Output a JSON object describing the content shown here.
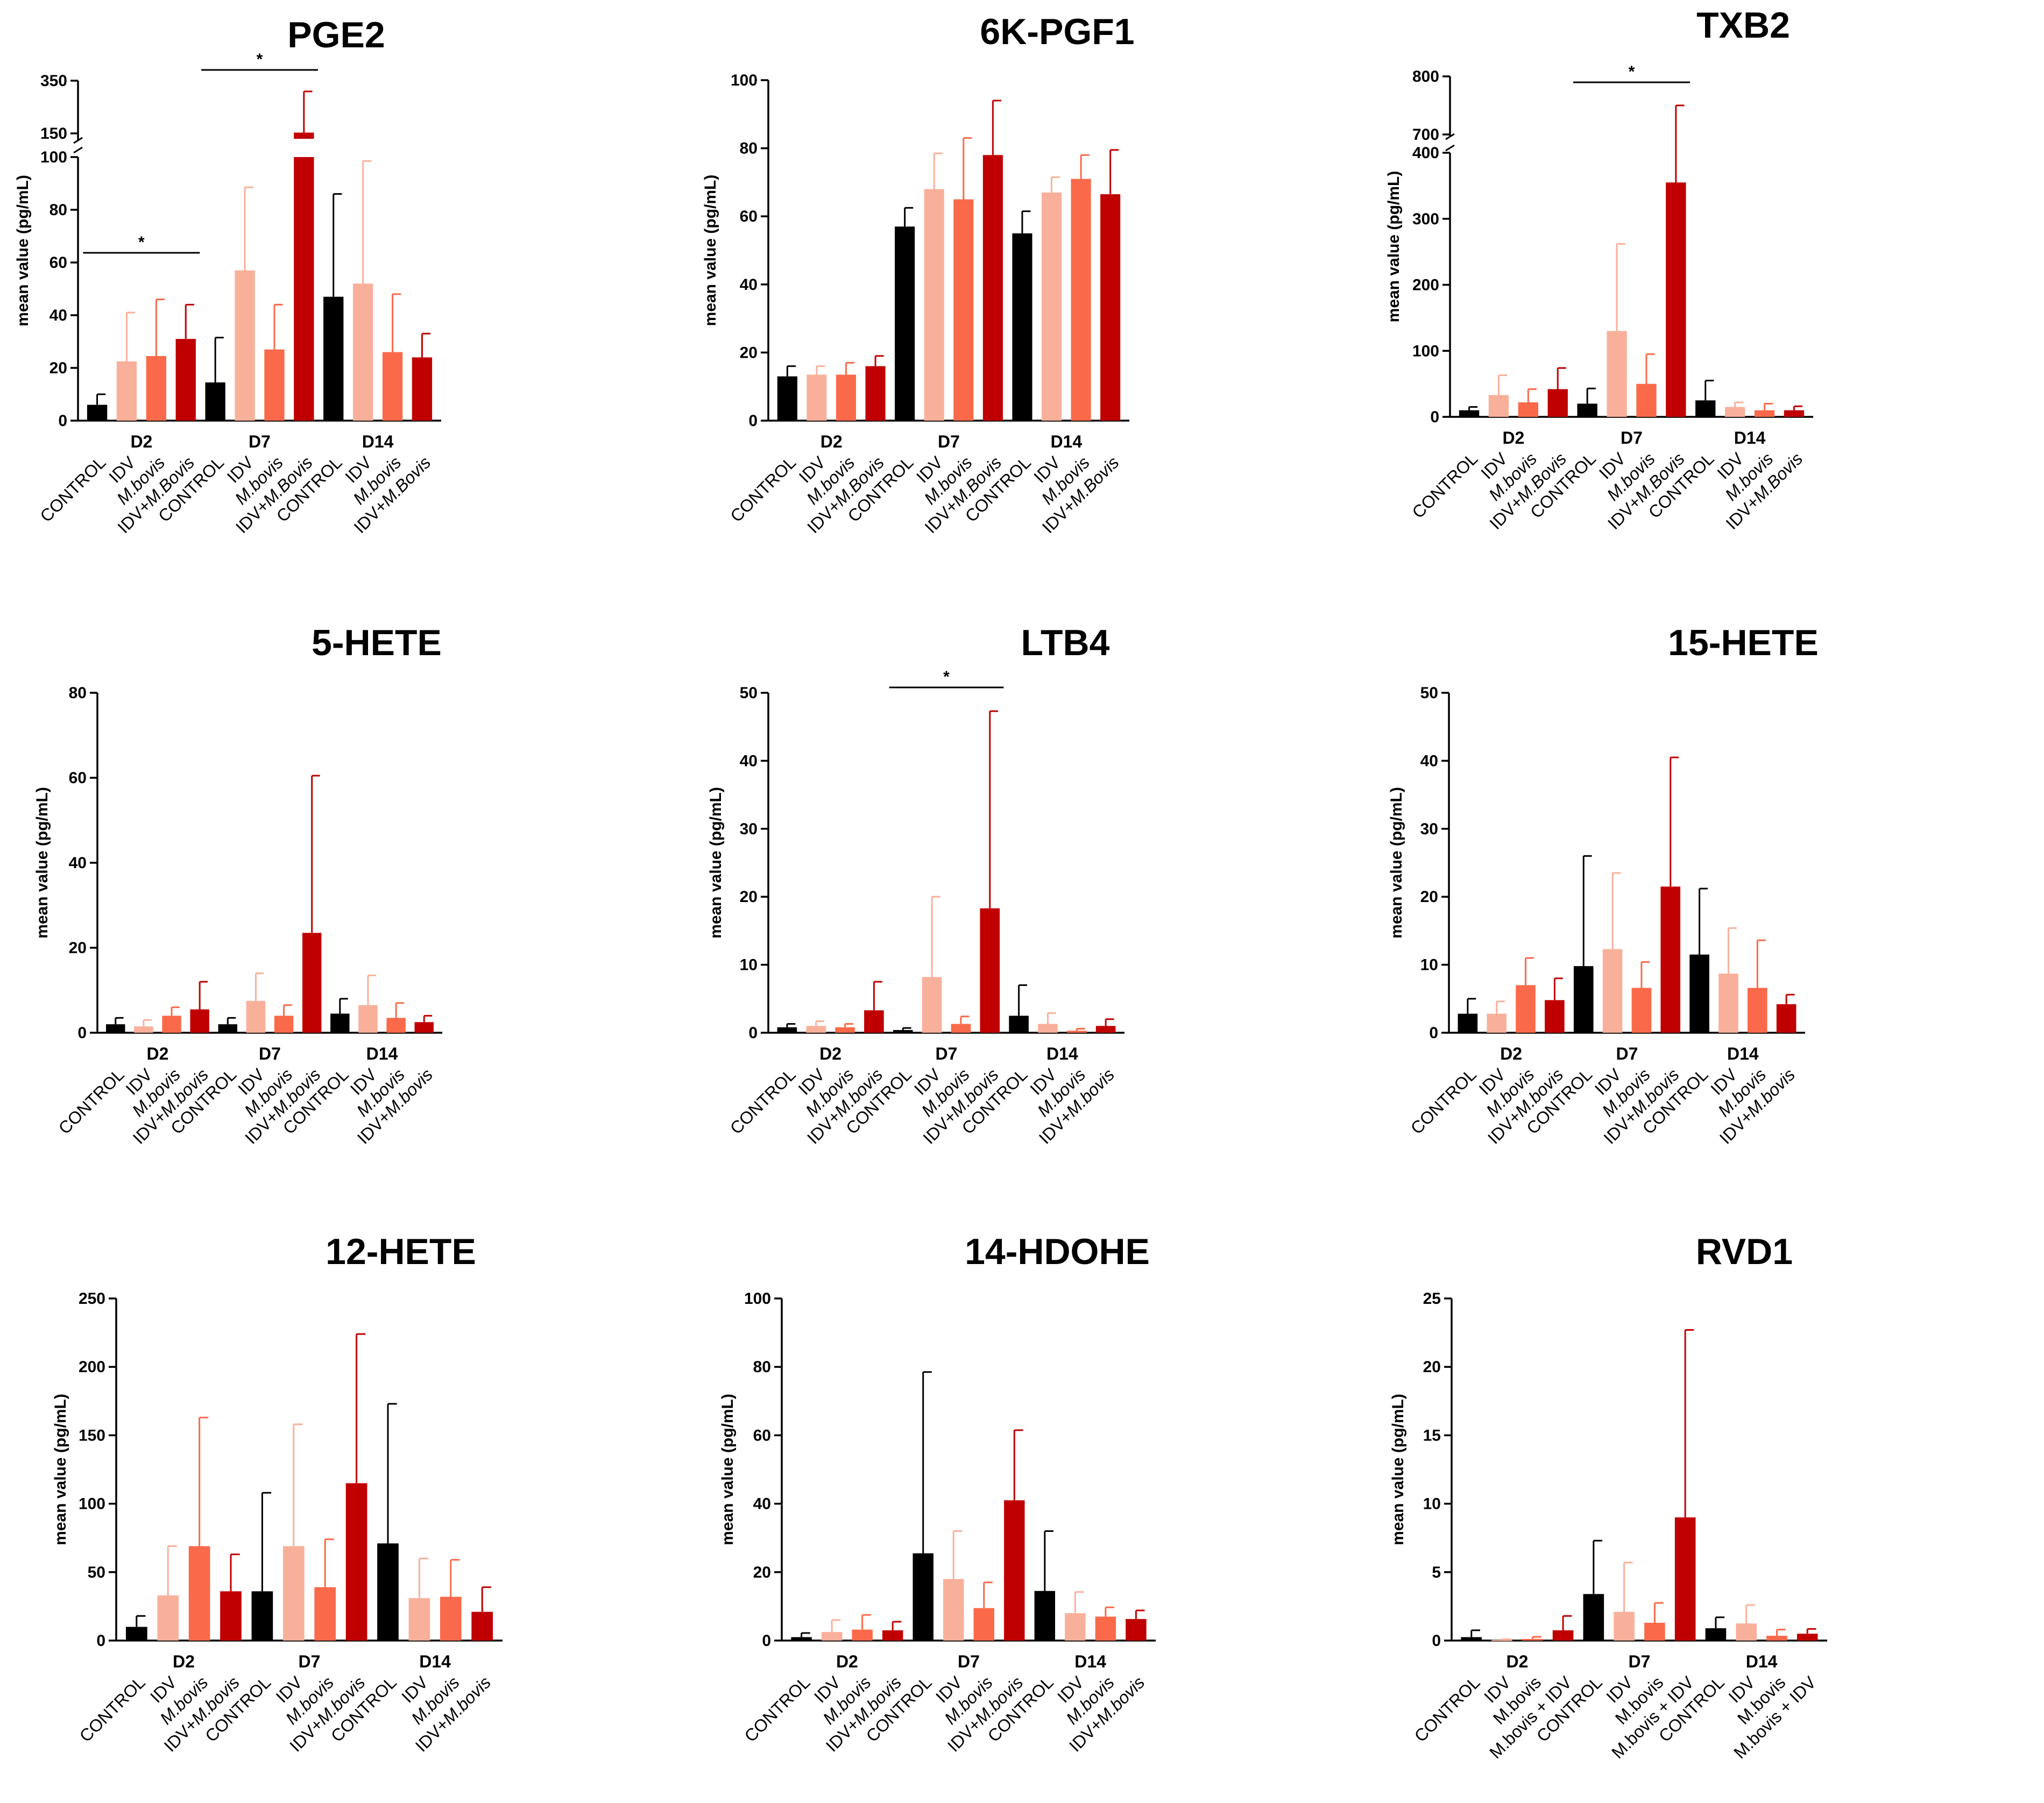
{
  "figure": {
    "ylabel": "mean value (pg/mL)",
    "colors": {
      "CONTROL": "#000000",
      "IDV": "#f9b09a",
      "M.bovis": "#fa6a4a",
      "IDV+M.bovis": "#c00000"
    }
  },
  "chart_data": [
    {
      "type": "bar",
      "title": "PGE2",
      "groups": [
        "D2",
        "D7",
        "D14"
      ],
      "categories": [
        "CONTROL",
        "IDV",
        "M.bovis",
        "IDV+M.Bovis"
      ],
      "cat_italic": [
        false,
        false,
        true,
        "partial"
      ],
      "ylim": [
        0,
        100
      ],
      "yticks": [
        0,
        20,
        40,
        60,
        80,
        100
      ],
      "break": {
        "lower_max": 100,
        "upper_range": [
          150,
          350
        ],
        "upper_ticks": [
          150,
          350
        ]
      },
      "values": [
        [
          6,
          22.5,
          24.5,
          31
        ],
        [
          14.5,
          57,
          27,
          153
        ],
        [
          47,
          52,
          26,
          24
        ]
      ],
      "errors": [
        [
          4,
          18.5,
          21.5,
          13
        ],
        [
          17,
          31.5,
          17,
          177
        ],
        [
          39,
          46.5,
          22,
          9
        ]
      ],
      "significance": [
        {
          "from": [
            0,
            0
          ],
          "to": [
            0,
            3
          ],
          "label": "*"
        },
        {
          "from": [
            1,
            0
          ],
          "to": [
            1,
            3
          ],
          "label": "*"
        }
      ]
    },
    {
      "type": "bar",
      "title": "6K-PGF1",
      "groups": [
        "D2",
        "D7",
        "D14"
      ],
      "categories": [
        "CONTROL",
        "IDV",
        "M.bovis",
        "IDV+M.Bovis"
      ],
      "cat_italic": [
        false,
        false,
        true,
        "partial"
      ],
      "ylim": [
        0,
        100
      ],
      "yticks": [
        0,
        20,
        40,
        60,
        80,
        100
      ],
      "values": [
        [
          13,
          13.5,
          13.5,
          16
        ],
        [
          57,
          68,
          65,
          78
        ],
        [
          55,
          67,
          71,
          66.5
        ]
      ],
      "errors": [
        [
          3,
          2.5,
          3.5,
          3
        ],
        [
          5.5,
          10.5,
          18,
          16
        ],
        [
          6.5,
          4.5,
          7,
          13
        ]
      ],
      "significance": []
    },
    {
      "type": "bar",
      "title": "TXB2",
      "groups": [
        "D2",
        "D7",
        "D14"
      ],
      "categories": [
        "CONTROL",
        "IDV",
        "M.bovis",
        "IDV+M.Bovis"
      ],
      "cat_italic": [
        false,
        false,
        true,
        "partial"
      ],
      "ylim": [
        0,
        400
      ],
      "yticks": [
        0,
        100,
        200,
        300,
        400
      ],
      "break": {
        "lower_max": 400,
        "upper_range": [
          700,
          800
        ],
        "upper_ticks": [
          700,
          800
        ]
      },
      "values": [
        [
          10,
          33,
          22,
          42
        ],
        [
          20,
          130,
          50,
          355
        ],
        [
          25,
          15,
          10,
          10
        ]
      ],
      "errors": [
        [
          5,
          30,
          20,
          32
        ],
        [
          23,
          132,
          45,
          400
        ],
        [
          30,
          7,
          10,
          6
        ]
      ],
      "significance": [
        {
          "from": [
            1,
            0
          ],
          "to": [
            1,
            3
          ],
          "label": "*"
        }
      ]
    },
    {
      "type": "bar",
      "title": "5-HETE",
      "groups": [
        "D2",
        "D7",
        "D14"
      ],
      "categories": [
        "CONTROL",
        "IDV",
        "M.bovis",
        "IDV+M.bovis"
      ],
      "cat_italic": [
        false,
        false,
        true,
        "partial"
      ],
      "ylim": [
        0,
        80
      ],
      "yticks": [
        0,
        20,
        40,
        60,
        80
      ],
      "values": [
        [
          2,
          1.5,
          4,
          5.5
        ],
        [
          2,
          7.5,
          4,
          23.5
        ],
        [
          4.5,
          6.5,
          3.5,
          2.5
        ]
      ],
      "errors": [
        [
          1.5,
          1.5,
          2,
          6.5
        ],
        [
          1.5,
          6.5,
          2.5,
          37
        ],
        [
          3.5,
          7,
          3.5,
          1.5
        ]
      ],
      "significance": []
    },
    {
      "type": "bar",
      "title": "LTB4",
      "groups": [
        "D2",
        "D7",
        "D14"
      ],
      "categories": [
        "CONTROL",
        "IDV",
        "M.bovis",
        "IDV+M.bovis"
      ],
      "cat_italic": [
        false,
        false,
        true,
        "partial"
      ],
      "ylim": [
        0,
        50
      ],
      "yticks": [
        0,
        10,
        20,
        30,
        40,
        50
      ],
      "values": [
        [
          0.8,
          1,
          0.8,
          3.3
        ],
        [
          0.4,
          8.2,
          1.3,
          18.3
        ],
        [
          2.5,
          1.3,
          0.3,
          1
        ]
      ],
      "errors": [
        [
          0.5,
          0.7,
          0.5,
          4.2
        ],
        [
          0.3,
          11.8,
          1.1,
          29
        ],
        [
          4.5,
          1.6,
          0.3,
          1
        ]
      ],
      "significance": [
        {
          "from": [
            1,
            0
          ],
          "to": [
            1,
            3
          ],
          "label": "*"
        }
      ]
    },
    {
      "type": "bar",
      "title": "15-HETE",
      "groups": [
        "D2",
        "D7",
        "D14"
      ],
      "categories": [
        "CONTROL",
        "IDV",
        "M.bovis",
        "IDV+M.bovis"
      ],
      "cat_italic": [
        false,
        false,
        true,
        "partial"
      ],
      "ylim": [
        0,
        50
      ],
      "yticks": [
        0,
        10,
        20,
        30,
        40,
        50
      ],
      "values": [
        [
          2.8,
          2.8,
          7,
          4.8
        ],
        [
          9.8,
          12.3,
          6.6,
          21.5
        ],
        [
          11.5,
          8.7,
          6.6,
          4.2
        ]
      ],
      "errors": [
        [
          2.2,
          1.8,
          4,
          3.2
        ],
        [
          16.2,
          11.2,
          3.8,
          19
        ],
        [
          9.7,
          6.7,
          7,
          1.4
        ]
      ],
      "significance": []
    },
    {
      "type": "bar",
      "title": "12-HETE",
      "groups": [
        "D2",
        "D7",
        "D14"
      ],
      "categories": [
        "CONTROL",
        "IDV",
        "M.bovis",
        "IDV+M.bovis"
      ],
      "cat_italic": [
        false,
        false,
        true,
        "partial"
      ],
      "ylim": [
        0,
        250
      ],
      "yticks": [
        0,
        50,
        100,
        150,
        200,
        250
      ],
      "values": [
        [
          10,
          33,
          69,
          36
        ],
        [
          36,
          69,
          39,
          115
        ],
        [
          71,
          31,
          32,
          21
        ]
      ],
      "errors": [
        [
          8,
          36,
          94,
          27
        ],
        [
          72,
          89,
          35,
          109
        ],
        [
          102,
          29,
          27,
          18
        ]
      ],
      "significance": []
    },
    {
      "type": "bar",
      "title": "14-HDOHE",
      "groups": [
        "D2",
        "D7",
        "D14"
      ],
      "categories": [
        "CONTROL",
        "IDV",
        "M.bovis",
        "IDV+M.bovis"
      ],
      "cat_italic": [
        false,
        false,
        true,
        "partial"
      ],
      "ylim": [
        0,
        100
      ],
      "yticks": [
        0,
        20,
        40,
        60,
        80,
        100
      ],
      "values": [
        [
          1,
          2.5,
          3.2,
          3
        ],
        [
          25.5,
          18,
          9.5,
          41
        ],
        [
          14.5,
          8,
          7,
          6.3
        ]
      ],
      "errors": [
        [
          1.2,
          3.5,
          4.3,
          2.5
        ],
        [
          53,
          14,
          7.5,
          20.5
        ],
        [
          17.5,
          6.2,
          2.7,
          2.5
        ]
      ],
      "significance": []
    },
    {
      "type": "bar",
      "title": "RVD1",
      "groups": [
        "D2",
        "D7",
        "D14"
      ],
      "categories": [
        "CONTROL",
        "IDV",
        "M.bovis",
        "M.bovis + IDV"
      ],
      "cat_italic": [
        false,
        false,
        false,
        false
      ],
      "ylim": [
        0,
        25
      ],
      "yticks": [
        0,
        5,
        10,
        15,
        20,
        25
      ],
      "values": [
        [
          0.25,
          0.05,
          0.12,
          0.75
        ],
        [
          3.4,
          2.1,
          1.3,
          9
        ],
        [
          0.9,
          1.25,
          0.35,
          0.5
        ]
      ],
      "errors": [
        [
          0.5,
          0.05,
          0.15,
          1.05
        ],
        [
          3.9,
          3.6,
          1.45,
          13.7
        ],
        [
          0.8,
          1.35,
          0.45,
          0.35
        ]
      ],
      "significance": []
    }
  ]
}
